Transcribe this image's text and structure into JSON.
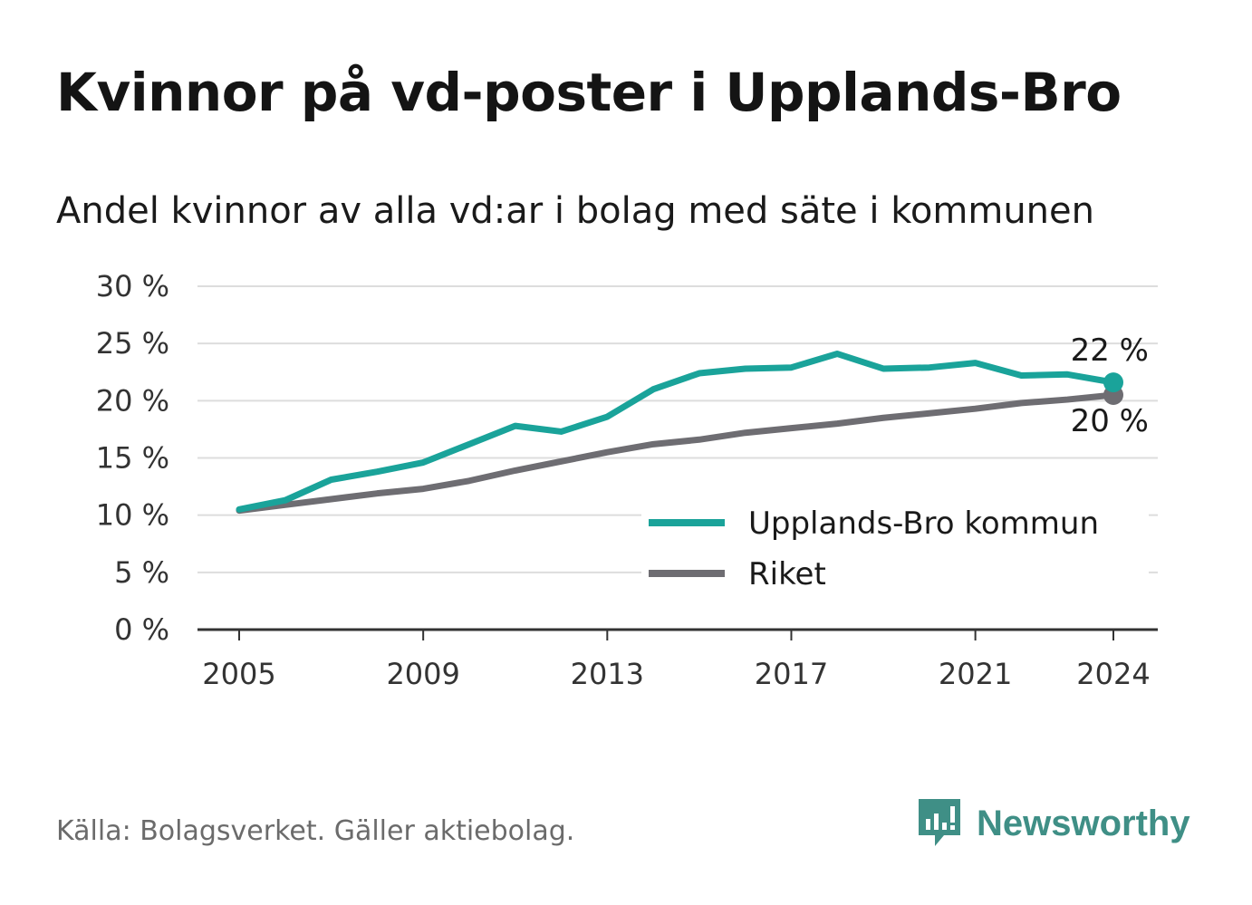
{
  "title": "Kvinnor på vd-poster i Upplands-Bro",
  "subtitle": "Andel kvinnor av alla vd:ar i bolag med säte i kommunen",
  "source": "Källa: Bolagsverket. Gäller aktiebolag.",
  "brand": "Newsworthy",
  "colors": {
    "upplands_bro": "#1aa39a",
    "riket": "#6e6d72",
    "grid": "#dddddd",
    "axis": "#333333",
    "brand": "#3f8f86"
  },
  "chart_data": {
    "type": "line",
    "x": [
      2005,
      2006,
      2007,
      2008,
      2009,
      2010,
      2011,
      2012,
      2013,
      2014,
      2015,
      2016,
      2017,
      2018,
      2019,
      2020,
      2021,
      2022,
      2023,
      2024
    ],
    "x_ticks": [
      2005,
      2009,
      2013,
      2017,
      2021,
      2024
    ],
    "x_tick_labels": [
      "2005",
      "2009",
      "2013",
      "2017",
      "2021",
      "2024"
    ],
    "y_ticks": [
      0,
      5,
      10,
      15,
      20,
      25,
      30
    ],
    "y_tick_labels": [
      "0 %",
      "5 %",
      "10 %",
      "15 %",
      "20 %",
      "25 %",
      "30 %"
    ],
    "ylim": [
      0,
      30
    ],
    "grid": true,
    "legend_position": "bottom-right",
    "series": [
      {
        "name": "Upplands-Bro kommun",
        "values": [
          10.5,
          11.3,
          13.1,
          13.8,
          14.6,
          16.2,
          17.8,
          17.3,
          18.6,
          21.0,
          22.4,
          22.8,
          22.9,
          24.1,
          22.8,
          22.9,
          23.3,
          22.2,
          22.3,
          21.6
        ],
        "end_label": "22 %"
      },
      {
        "name": "Riket",
        "values": [
          10.4,
          10.9,
          11.4,
          11.9,
          12.3,
          13.0,
          13.9,
          14.7,
          15.5,
          16.2,
          16.6,
          17.2,
          17.6,
          18.0,
          18.5,
          18.9,
          19.3,
          19.8,
          20.1,
          20.5
        ],
        "end_label": "20 %"
      }
    ]
  }
}
